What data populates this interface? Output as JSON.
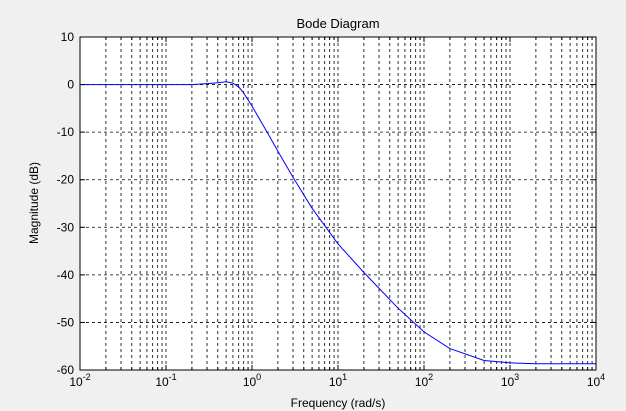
{
  "chart_data": {
    "type": "line",
    "title": "Bode Diagram",
    "xlabel": "Frequency  (rad/s)",
    "ylabel": "Magnitude (dB)",
    "xscale": "log",
    "xlim": [
      0.01,
      10000
    ],
    "ylim": [
      -60,
      10
    ],
    "grid": true,
    "x_tick_values": [
      0.01,
      0.1,
      1,
      10,
      100,
      1000,
      10000
    ],
    "x_tick_labels": [
      {
        "base": "10",
        "exp": "-2"
      },
      {
        "base": "10",
        "exp": "-1"
      },
      {
        "base": "10",
        "exp": "0"
      },
      {
        "base": "10",
        "exp": "1"
      },
      {
        "base": "10",
        "exp": "2"
      },
      {
        "base": "10",
        "exp": "3"
      },
      {
        "base": "10",
        "exp": "4"
      }
    ],
    "y_ticks": [
      10,
      0,
      -10,
      -20,
      -30,
      -40,
      -50,
      -60
    ],
    "series_color": "#0000ff",
    "series": [
      {
        "x": [
          0.01,
          0.1,
          0.2,
          0.3,
          0.4,
          0.5,
          0.6,
          0.7,
          0.8,
          1,
          1.5,
          2,
          3,
          5,
          10,
          20,
          50,
          100,
          200,
          500,
          1000,
          2000,
          10000
        ],
        "values": [
          0,
          0,
          0,
          0.2,
          0.4,
          0.6,
          0.3,
          -0.5,
          -1.8,
          -4.5,
          -10,
          -14,
          -19.5,
          -26,
          -33.5,
          -39.5,
          -47,
          -52,
          -55.5,
          -58,
          -58.5,
          -58.7,
          -58.7
        ]
      }
    ]
  }
}
